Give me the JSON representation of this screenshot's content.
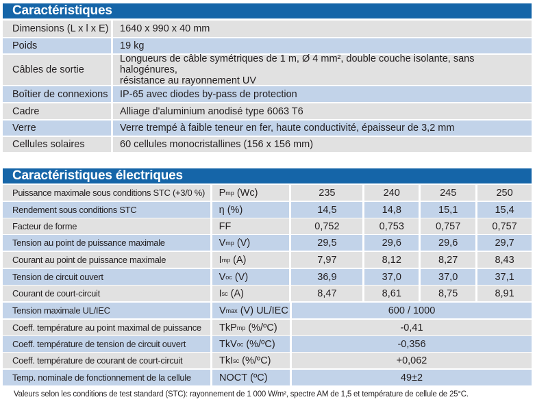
{
  "general": {
    "title": "Caractéristiques",
    "rows": [
      {
        "label": "Dimensions (L x l x E)",
        "value": "1640 x 990 x 40 mm"
      },
      {
        "label": "Poids",
        "value": "19 kg"
      },
      {
        "label": "Câbles de sortie",
        "value_line1": "Longueurs de câble symétriques de 1 m, Ø 4 mm², double couche isolante, sans halogénures,",
        "value_line2": "résistance au rayonnement UV"
      },
      {
        "label": "Boîtier de connexions",
        "value": "IP-65 avec diodes by-pass de protection"
      },
      {
        "label": "Cadre",
        "value": "Alliage d'aluminium anodisé  type 6063 T6"
      },
      {
        "label": "Verre",
        "value": "Verre trempé à faible teneur en fer, haute conductivité, épaisseur de 3,2 mm"
      },
      {
        "label": "Cellules solaires",
        "value": "60 cellules monocristallines (156 x 156 mm)"
      }
    ]
  },
  "electrical": {
    "title": "Caractéristiques électriques",
    "rows": [
      {
        "label": "Puissance maximale sous conditions STC (+3/0 %)",
        "sym": "P",
        "sub": "mp",
        "unit": " (Wc)",
        "values": [
          "235",
          "240",
          "245",
          "250"
        ]
      },
      {
        "label": "Rendement sous conditions STC",
        "sym": "η",
        "sub": "",
        "unit": " (%)",
        "values": [
          "14,5",
          "14,8",
          "15,1",
          "15,4"
        ]
      },
      {
        "label": "Facteur de forme",
        "sym": "FF",
        "sub": "",
        "unit": "",
        "values": [
          "0,752",
          "0,753",
          "0,757",
          "0,757"
        ]
      },
      {
        "label": "Tension au point de puissance maximale",
        "sym": "V",
        "sub": "mp",
        "unit": " (V)",
        "values": [
          "29,5",
          "29,6",
          "29,6",
          "29,7"
        ]
      },
      {
        "label": "Courant au point de puissance maximale",
        "sym": "I",
        "sub": "mp",
        "unit": " (A)",
        "values": [
          "7,97",
          "8,12",
          "8,27",
          "8,43"
        ]
      },
      {
        "label": "Tension de circuit ouvert",
        "sym": "V",
        "sub": "oc",
        "unit": " (V)",
        "values": [
          "36,9",
          "37,0",
          "37,0",
          "37,1"
        ]
      },
      {
        "label": "Courant de court-circuit",
        "sym": "I",
        "sub": "sc",
        "unit": " (A)",
        "values": [
          "8,47",
          "8,61",
          "8,75",
          "8,91"
        ]
      },
      {
        "label": "Tension maximale UL/IEC",
        "sym": "V",
        "sub": "max",
        "unit": " (V) UL/IEC",
        "value": "600 / 1000"
      },
      {
        "label": "Coeff. température au point maximal de puissance",
        "sym": "TkP",
        "sub": "mp",
        "unit": " (%/ºC)",
        "value": "-0,41"
      },
      {
        "label": "Coeff. température de tension de circuit ouvert",
        "sym": "TkV",
        "sub": "oc",
        "unit": " (%/ºC)",
        "value": "-0,356"
      },
      {
        "label": "Coeff. température de courant de court-circuit",
        "sym": "TkI",
        "sub": "sc",
        "unit": " (%/ºC)",
        "value": "+0,062"
      },
      {
        "label": "Temp. nominale de fonctionnement de la cellule",
        "sym": "NOCT",
        "sub": "",
        "unit": " (ºC)",
        "value": "49±2"
      }
    ]
  },
  "footnote": "Valeurs selon les conditions de test standard (STC): rayonnement de 1 000 W/m², spectre AM de 1,5 et température de cellule de 25°C.",
  "colors": {
    "header": "#1565a8",
    "row_gray": "#e1e1e1",
    "row_blue": "#c2d3e9"
  }
}
